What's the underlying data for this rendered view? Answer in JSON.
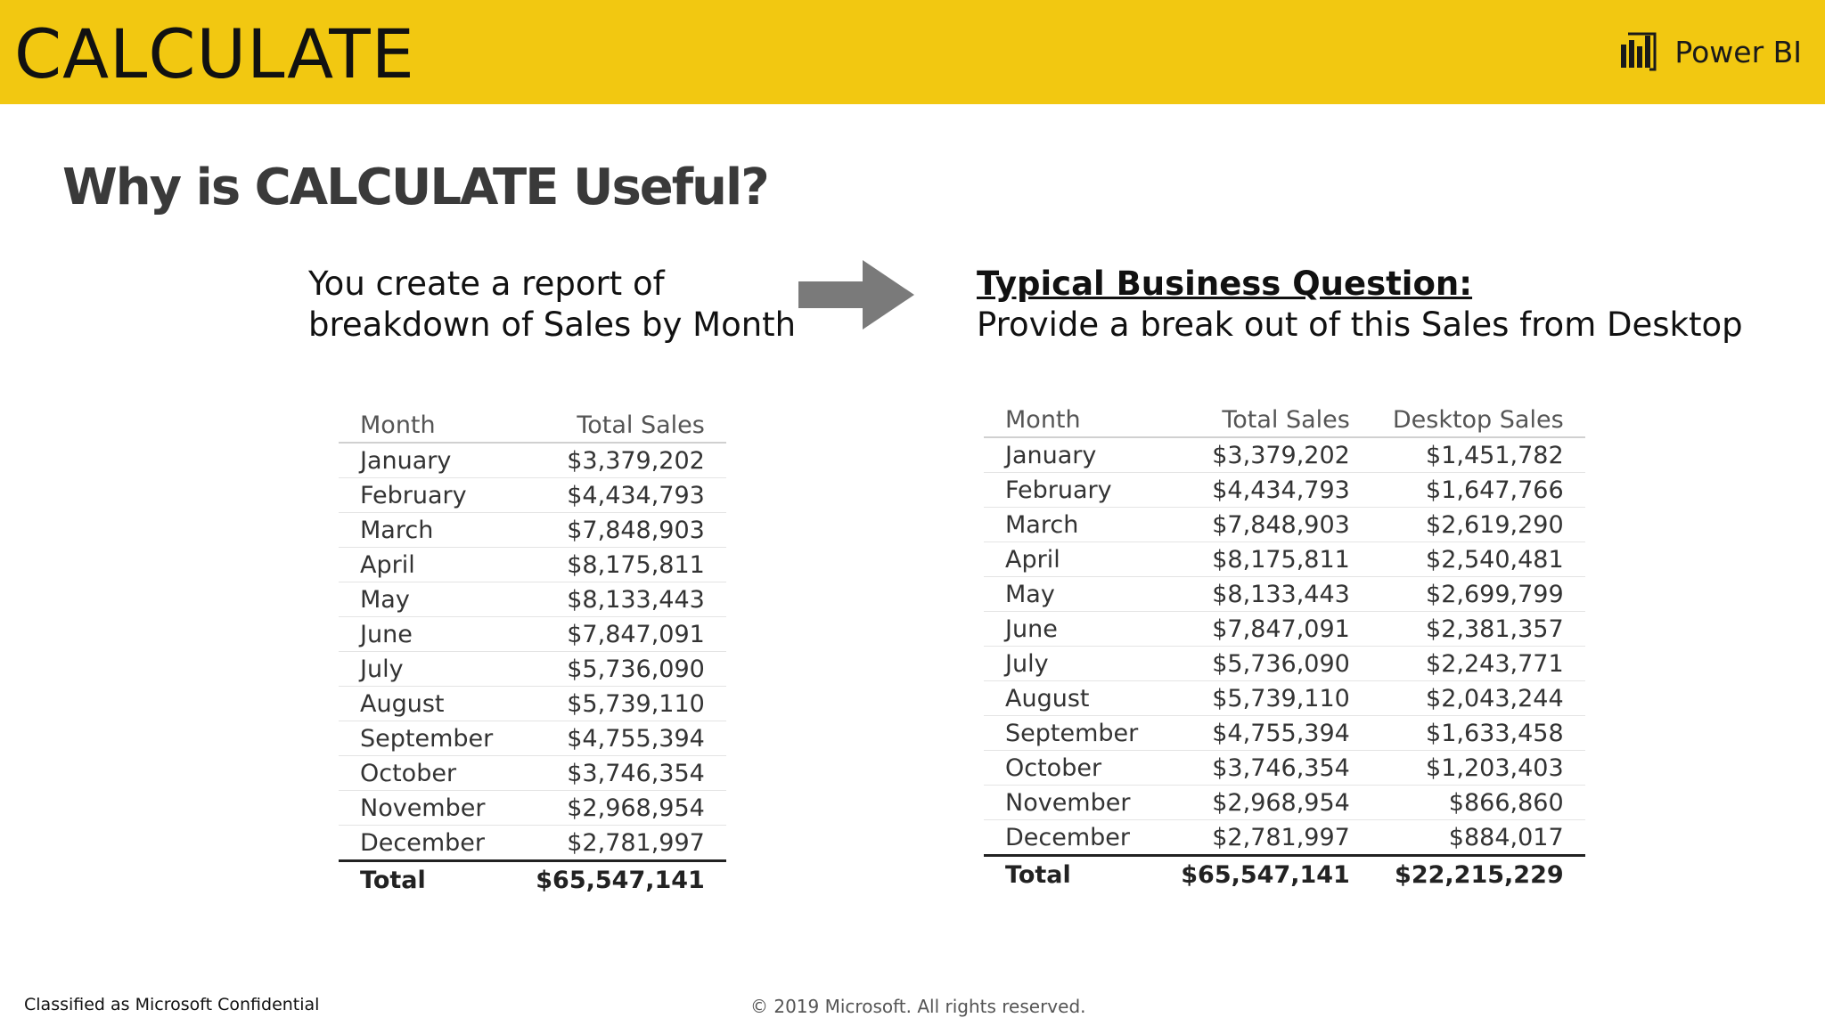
{
  "header": {
    "title": "CALCULATE",
    "brand": "Power BI",
    "brand_icon": "power-bi-logo-icon"
  },
  "slide": {
    "subtitle": "Why is CALCULATE Useful?",
    "left_intro": [
      "You create a report of",
      "breakdown of Sales by Month"
    ],
    "arrow_icon": "right-arrow-icon",
    "question_heading": "Typical Business Question:",
    "question_body": "Provide a break out of this Sales from Desktop"
  },
  "table1": {
    "headers": [
      "Month",
      "Total Sales"
    ],
    "rows": [
      [
        "January",
        "$3,379,202"
      ],
      [
        "February",
        "$4,434,793"
      ],
      [
        "March",
        "$7,848,903"
      ],
      [
        "April",
        "$8,175,811"
      ],
      [
        "May",
        "$8,133,443"
      ],
      [
        "June",
        "$7,847,091"
      ],
      [
        "July",
        "$5,736,090"
      ],
      [
        "August",
        "$5,739,110"
      ],
      [
        "September",
        "$4,755,394"
      ],
      [
        "October",
        "$3,746,354"
      ],
      [
        "November",
        "$2,968,954"
      ],
      [
        "December",
        "$2,781,997"
      ]
    ],
    "total": [
      "Total",
      "$65,547,141"
    ]
  },
  "table2": {
    "headers": [
      "Month",
      "Total Sales",
      "Desktop Sales"
    ],
    "rows": [
      [
        "January",
        "$3,379,202",
        "$1,451,782"
      ],
      [
        "February",
        "$4,434,793",
        "$1,647,766"
      ],
      [
        "March",
        "$7,848,903",
        "$2,619,290"
      ],
      [
        "April",
        "$8,175,811",
        "$2,540,481"
      ],
      [
        "May",
        "$8,133,443",
        "$2,699,799"
      ],
      [
        "June",
        "$7,847,091",
        "$2,381,357"
      ],
      [
        "July",
        "$5,736,090",
        "$2,243,771"
      ],
      [
        "August",
        "$5,739,110",
        "$2,043,244"
      ],
      [
        "September",
        "$4,755,394",
        "$1,633,458"
      ],
      [
        "October",
        "$3,746,354",
        "$1,203,403"
      ],
      [
        "November",
        "$2,968,954",
        "$866,860"
      ],
      [
        "December",
        "$2,781,997",
        "$884,017"
      ]
    ],
    "total": [
      "Total",
      "$65,547,141",
      "$22,215,229"
    ]
  },
  "footer": {
    "classification": "Classified as Microsoft Confidential",
    "copyright": "© 2019 Microsoft. All rights reserved."
  },
  "colors": {
    "header_background": "#f2c811",
    "arrow": "#7a7a7a"
  }
}
